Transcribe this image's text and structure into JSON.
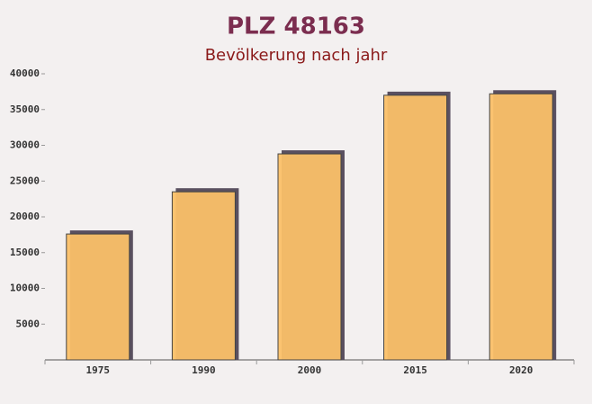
{
  "chart_data": {
    "type": "bar",
    "title": "PLZ 48163",
    "subtitle": "Bevölkerung nach jahr",
    "categories": [
      "1975",
      "1990",
      "2000",
      "2015",
      "2020"
    ],
    "values": [
      17600,
      23500,
      28800,
      37000,
      37200
    ],
    "color": "#fbc068",
    "ylim": [
      0,
      40000
    ],
    "yticks": [
      5000,
      10000,
      15000,
      20000,
      25000,
      30000,
      35000,
      40000
    ],
    "grid": false
  }
}
